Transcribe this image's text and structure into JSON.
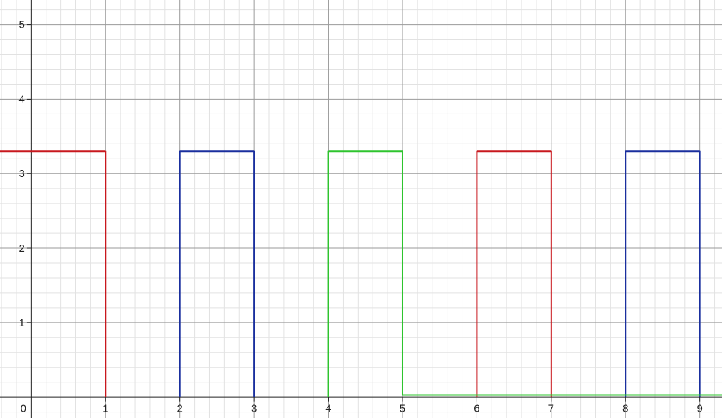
{
  "chart_data": {
    "type": "line",
    "title": "",
    "xlabel": "",
    "ylabel": "",
    "xlim": [
      -0.42,
      9.3
    ],
    "ylim": [
      -0.28,
      5.33
    ],
    "grid": true,
    "minor_grid_divisions": 5,
    "x_ticks": [
      "0",
      "1",
      "2",
      "3",
      "4",
      "5",
      "6",
      "7",
      "8",
      "9"
    ],
    "y_ticks": [
      "1",
      "2",
      "3",
      "4",
      "5"
    ],
    "series": [
      {
        "color": "#c8181e",
        "segments": [
          [
            [
              -0.42,
              3.3
            ],
            [
              1,
              3.3
            ],
            [
              1,
              0
            ]
          ],
          [
            [
              6,
              0
            ],
            [
              6,
              3.3
            ],
            [
              7,
              3.3
            ],
            [
              7,
              0
            ]
          ]
        ]
      },
      {
        "color": "#1a2f9e",
        "segments": [
          [
            [
              2,
              0
            ],
            [
              2,
              3.3
            ],
            [
              3,
              3.3
            ],
            [
              3,
              0
            ]
          ],
          [
            [
              8,
              0
            ],
            [
              8,
              3.3
            ],
            [
              9,
              3.3
            ],
            [
              9,
              0
            ]
          ]
        ]
      },
      {
        "color": "#2ec42e",
        "segments": [
          [
            [
              4,
              0
            ],
            [
              4,
              3.3
            ],
            [
              5,
              3.3
            ],
            [
              5,
              0.03
            ],
            [
              9.3,
              0.03
            ]
          ]
        ]
      }
    ]
  }
}
